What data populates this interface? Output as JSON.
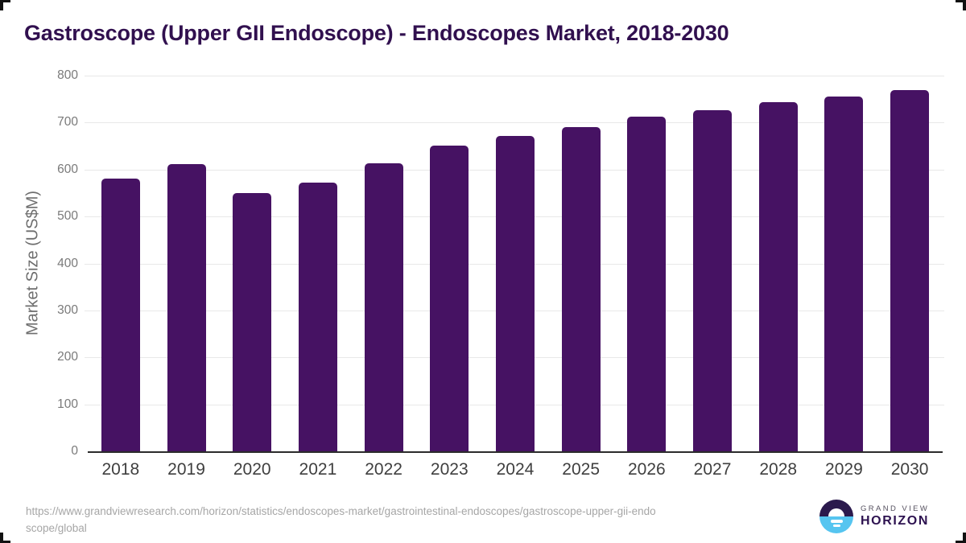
{
  "title": "Gastroscope (Upper GII Endoscope) - Endoscopes Market, 2018-2030",
  "chart_data": {
    "type": "bar",
    "title": "Gastroscope (Upper GII Endoscope) - Endoscopes Market, 2018-2030",
    "categories": [
      "2018",
      "2019",
      "2020",
      "2021",
      "2022",
      "2023",
      "2024",
      "2025",
      "2026",
      "2027",
      "2028",
      "2029",
      "2030"
    ],
    "values": [
      580,
      611,
      550,
      573,
      614,
      651,
      672,
      691,
      712,
      727,
      744,
      755,
      769
    ],
    "xlabel": "",
    "ylabel": "Market Size (US$M)",
    "ylim": [
      0,
      800
    ],
    "ytick_step": 100,
    "yticks": [
      0,
      100,
      200,
      300,
      400,
      500,
      600,
      700,
      800
    ],
    "grid": true,
    "legend": "none",
    "bar_color": "#461263"
  },
  "footer": {
    "url_lines": [
      "https://www.grandviewresearch.com/horizon/statistics/endoscopes-market/gastrointestinal-endoscopes/gastroscope-upper-gii-endo",
      "scope/global"
    ],
    "logo": {
      "line1": "GRAND VIEW",
      "line2": "HORIZON"
    }
  },
  "colors": {
    "bar": "#461263",
    "title_text": "#31104f",
    "gridline": "#e8e8e8",
    "axis_line": "#2b2b2b",
    "y_tick_label": "#7a7a7a",
    "x_tick_label": "#3f3f3f",
    "url_text": "#a6a6a6",
    "logo_dark": "#2b1a4d",
    "logo_blue": "#56c5f0",
    "logo_gray_text": "#55505f"
  }
}
